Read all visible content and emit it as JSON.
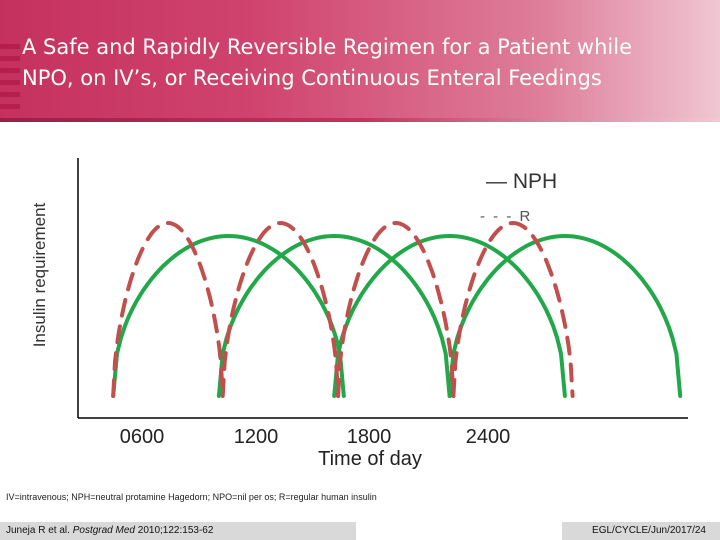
{
  "header": {
    "title_line1": "A Safe and Rapidly Reversible Regimen for a Patient while",
    "title_line2": "NPO, on IV’s, or Receiving Continuous Enteral Feedings"
  },
  "chart_data": {
    "type": "line",
    "title": "A Safe and Rapidly Reversible Regimen for a Patient while NPO, on IV’s, or Receiving Continuous Enteral Feedings",
    "xlabel": "Time of day",
    "ylabel": "Insulin requirement",
    "x_ticks": [
      "0600",
      "1200",
      "1800",
      "2400"
    ],
    "legend": [
      "— NPH",
      "- - - R"
    ],
    "series": [
      {
        "name": "NPH",
        "style": "solid",
        "color": "#22a84a",
        "curves": [
          {
            "start_hour": 4.5,
            "end_hour": 16.5
          },
          {
            "start_hour": 10,
            "end_hour": 22
          },
          {
            "start_hour": 16,
            "end_hour": 28
          },
          {
            "start_hour": 22,
            "end_hour": 34
          }
        ],
        "relative_peak": 0.7
      },
      {
        "name": "R",
        "style": "dashed",
        "color": "#c0504d",
        "curves": [
          {
            "start_hour": 4.5,
            "end_hour": 10.2
          },
          {
            "start_hour": 10.2,
            "end_hour": 16.2
          },
          {
            "start_hour": 16.2,
            "end_hour": 22.2
          },
          {
            "start_hour": 22.2,
            "end_hour": 28.4
          }
        ],
        "relative_peak": 0.75
      }
    ]
  },
  "footnote": "IV=intravenous; NPH=neutral protamine Hagedorn; NPO=nil per os; R=regular human insulin",
  "citation": {
    "authors": "Juneja R et al.",
    "journal": "Postgrad Med",
    "details": "2010;122:153-62"
  },
  "footer_code": "EGL/CYCLE/Jun/2017/24",
  "colors": {
    "nph": "#22a84a",
    "regular": "#c0504d",
    "accent": "#c5315f"
  }
}
